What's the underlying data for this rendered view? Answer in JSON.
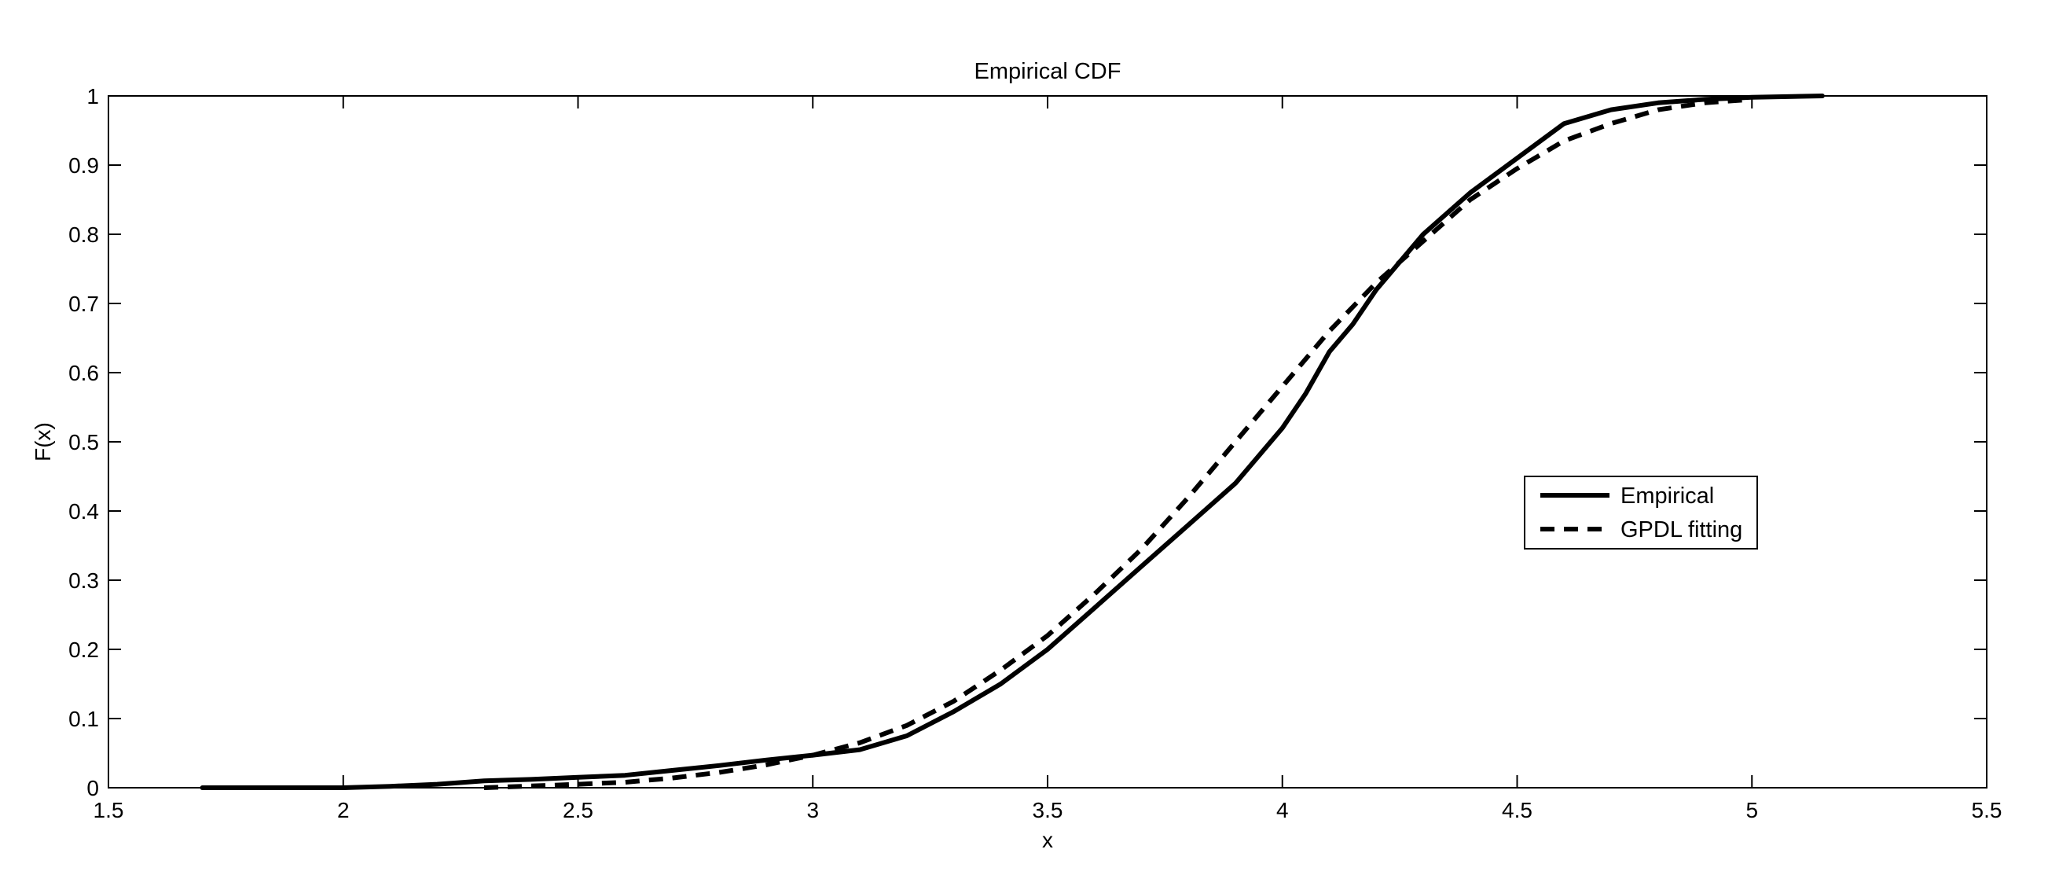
{
  "chart_data": {
    "type": "line",
    "title": "Empirical CDF",
    "xlabel": "x",
    "ylabel": "F(x)",
    "xlim": [
      1.5,
      5.5
    ],
    "ylim": [
      0,
      1
    ],
    "xticks": [
      1.5,
      2,
      2.5,
      3,
      3.5,
      4,
      4.5,
      5,
      5.5
    ],
    "xtick_labels": [
      "1.5",
      "2",
      "2.5",
      "3",
      "3.5",
      "4",
      "4.5",
      "5",
      "5.5"
    ],
    "yticks": [
      0,
      0.1,
      0.2,
      0.3,
      0.4,
      0.5,
      0.6,
      0.7,
      0.8,
      0.9,
      1
    ],
    "ytick_labels": [
      "0",
      "0.1",
      "0.2",
      "0.3",
      "0.4",
      "0.5",
      "0.6",
      "0.7",
      "0.8",
      "0.9",
      "1"
    ],
    "grid": false,
    "legend_position": "right-center",
    "series": [
      {
        "name": "Empirical",
        "style": "solid",
        "color": "#000000",
        "x": [
          1.7,
          2.0,
          2.1,
          2.2,
          2.3,
          2.4,
          2.5,
          2.6,
          2.7,
          2.8,
          2.9,
          3.0,
          3.1,
          3.2,
          3.3,
          3.4,
          3.5,
          3.6,
          3.7,
          3.8,
          3.9,
          4.0,
          4.05,
          4.1,
          4.15,
          4.2,
          4.3,
          4.4,
          4.5,
          4.6,
          4.7,
          4.8,
          4.9,
          5.0,
          5.15
        ],
        "y": [
          0.0,
          0.0,
          0.002,
          0.005,
          0.01,
          0.012,
          0.015,
          0.018,
          0.025,
          0.032,
          0.04,
          0.047,
          0.055,
          0.075,
          0.11,
          0.15,
          0.2,
          0.26,
          0.32,
          0.38,
          0.44,
          0.52,
          0.57,
          0.63,
          0.67,
          0.72,
          0.8,
          0.86,
          0.91,
          0.96,
          0.98,
          0.99,
          0.995,
          0.998,
          1.0
        ]
      },
      {
        "name": "GPDL fitting",
        "style": "dashed",
        "color": "#000000",
        "x": [
          2.3,
          2.5,
          2.6,
          2.7,
          2.8,
          2.9,
          3.0,
          3.1,
          3.2,
          3.3,
          3.4,
          3.5,
          3.6,
          3.7,
          3.8,
          3.9,
          4.0,
          4.1,
          4.2,
          4.3,
          4.4,
          4.5,
          4.6,
          4.7,
          4.8,
          4.9,
          5.0
        ],
        "y": [
          0.0,
          0.005,
          0.008,
          0.014,
          0.022,
          0.033,
          0.047,
          0.065,
          0.09,
          0.125,
          0.17,
          0.22,
          0.28,
          0.345,
          0.42,
          0.5,
          0.58,
          0.66,
          0.73,
          0.79,
          0.85,
          0.895,
          0.935,
          0.96,
          0.98,
          0.99,
          0.995
        ]
      }
    ]
  }
}
